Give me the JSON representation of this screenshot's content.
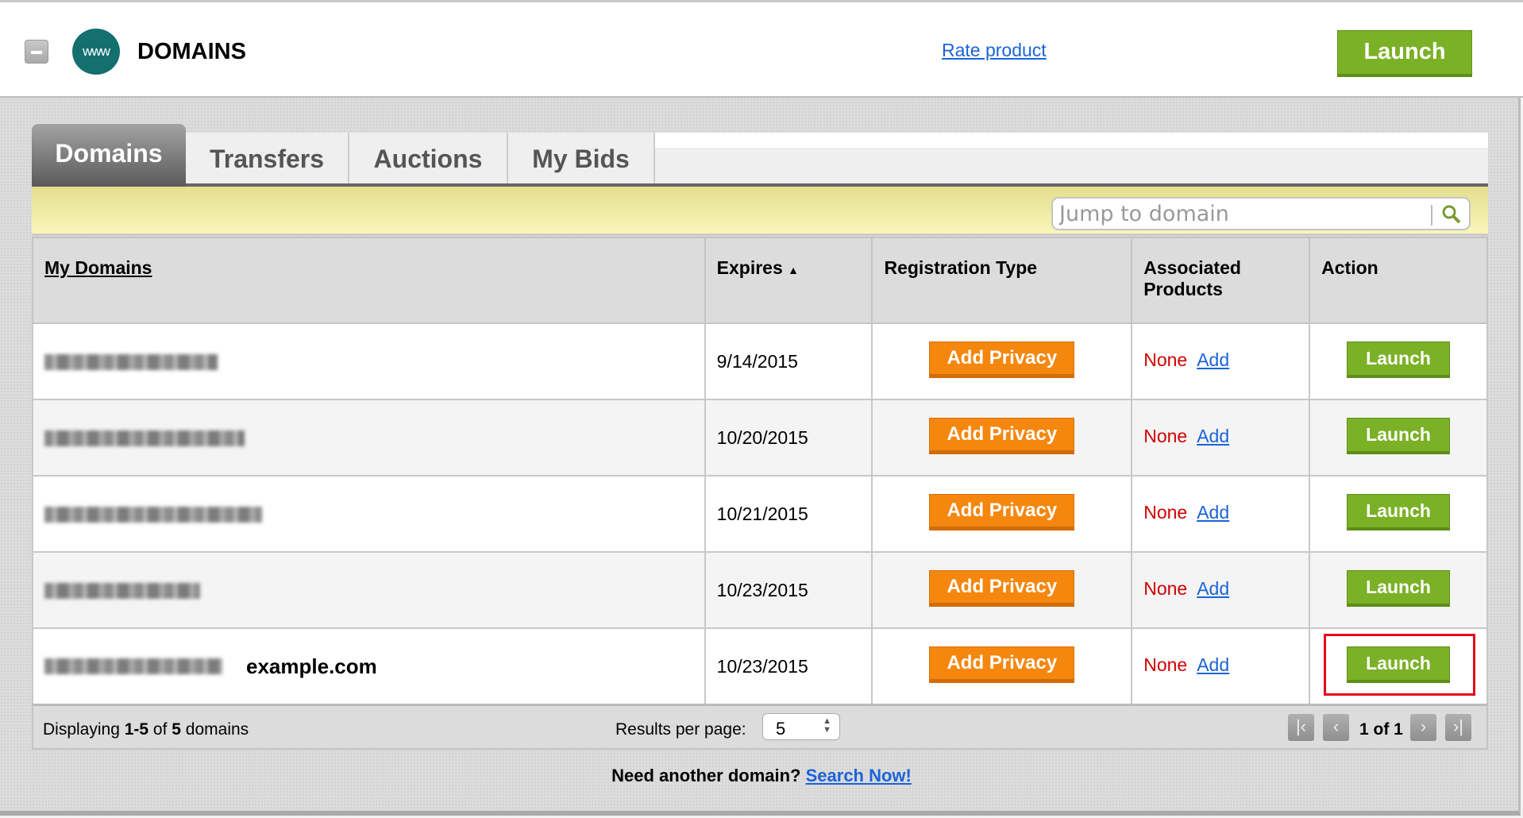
{
  "header": {
    "title": "DOMAINS",
    "logo_text": "www",
    "rate_link": "Rate product",
    "launch_label": "Launch"
  },
  "tabs": [
    {
      "label": "Domains",
      "active": true
    },
    {
      "label": "Transfers"
    },
    {
      "label": "Auctions"
    },
    {
      "label": "My Bids"
    }
  ],
  "search": {
    "placeholder": "Jump to domain"
  },
  "table": {
    "headers": {
      "domains": "My Domains",
      "expires": "Expires",
      "sort_indicator": "▲",
      "reg_type": "Registration Type",
      "assoc": "Associated Products",
      "action": "Action"
    },
    "rows": [
      {
        "domain": "",
        "expires": "9/14/2015",
        "privacy": "Add Privacy",
        "assoc": "None",
        "add": "Add",
        "action": "Launch"
      },
      {
        "domain": "",
        "expires": "10/20/2015",
        "privacy": "Add Privacy",
        "assoc": "None",
        "add": "Add",
        "action": "Launch"
      },
      {
        "domain": "",
        "expires": "10/21/2015",
        "privacy": "Add Privacy",
        "assoc": "None",
        "add": "Add",
        "action": "Launch"
      },
      {
        "domain": "",
        "expires": "10/23/2015",
        "privacy": "Add Privacy",
        "assoc": "None",
        "add": "Add",
        "action": "Launch"
      },
      {
        "domain": "",
        "annotation": "example.com",
        "expires": "10/23/2015",
        "privacy": "Add Privacy",
        "assoc": "None",
        "add": "Add",
        "action": "Launch",
        "highlighted": true
      }
    ]
  },
  "footer": {
    "displaying_prefix": "Displaying ",
    "range": "1-5",
    "of": " of ",
    "total": "5",
    "suffix": " domains",
    "results_per_page_label": "Results per page:",
    "results_per_page": "5",
    "page_info": "1 of 1"
  },
  "bottom": {
    "prompt": "Need another domain?",
    "link": "Search Now!"
  },
  "colors": {
    "launch_green": "#7bb126",
    "privacy_orange": "#f5870f",
    "none_red": "#d10000",
    "link_blue": "#1a63d8",
    "highlight_red": "#e4061a"
  }
}
